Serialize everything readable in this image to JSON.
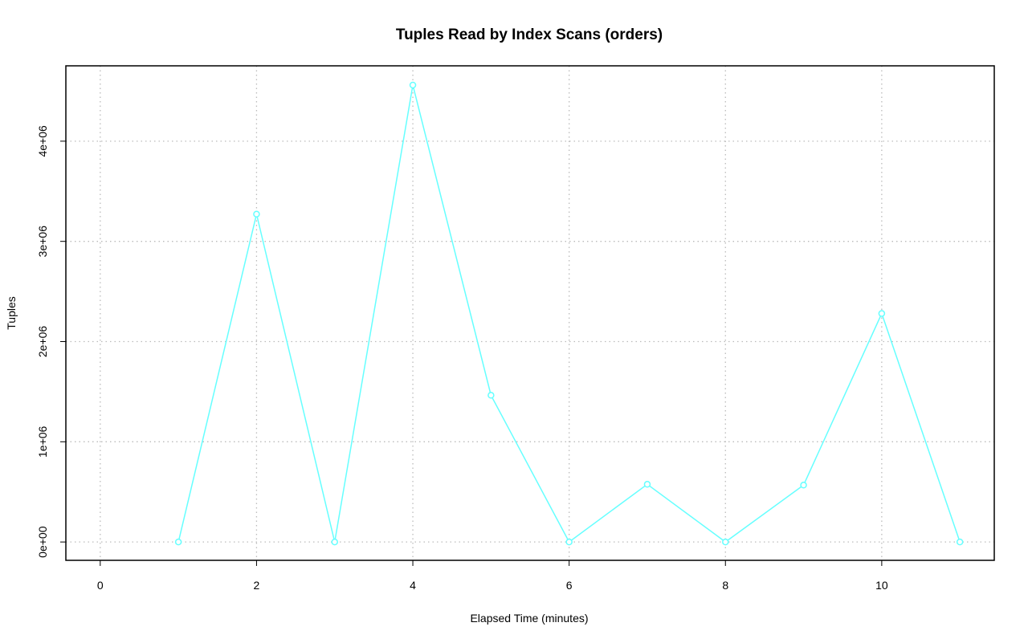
{
  "chart_data": {
    "type": "line",
    "title": "Tuples Read by Index Scans (orders)",
    "x_label": "Elapsed Time (minutes)",
    "y_label": "Tuples",
    "x": [
      1,
      2,
      3,
      4,
      5,
      6,
      7,
      8,
      9,
      10,
      11
    ],
    "series": [
      {
        "name": "orders",
        "color": "#66ffff",
        "values": [
          0,
          3272000,
          0,
          4560000,
          1464000,
          0,
          576000,
          0,
          568000,
          2280000,
          0
        ]
      }
    ],
    "xlim": [
      -0.44,
      11.44
    ],
    "xticks": [
      0,
      2,
      4,
      6,
      8,
      10
    ],
    "ylim": [
      -183000,
      4752000
    ],
    "yticks": [
      {
        "value": 0,
        "label": "0e+00"
      },
      {
        "value": 1000000,
        "label": "1e+06"
      },
      {
        "value": 2000000,
        "label": "2e+06"
      },
      {
        "value": 3000000,
        "label": "3e+06"
      },
      {
        "value": 4000000,
        "label": "4e+06"
      }
    ],
    "grid": true
  }
}
